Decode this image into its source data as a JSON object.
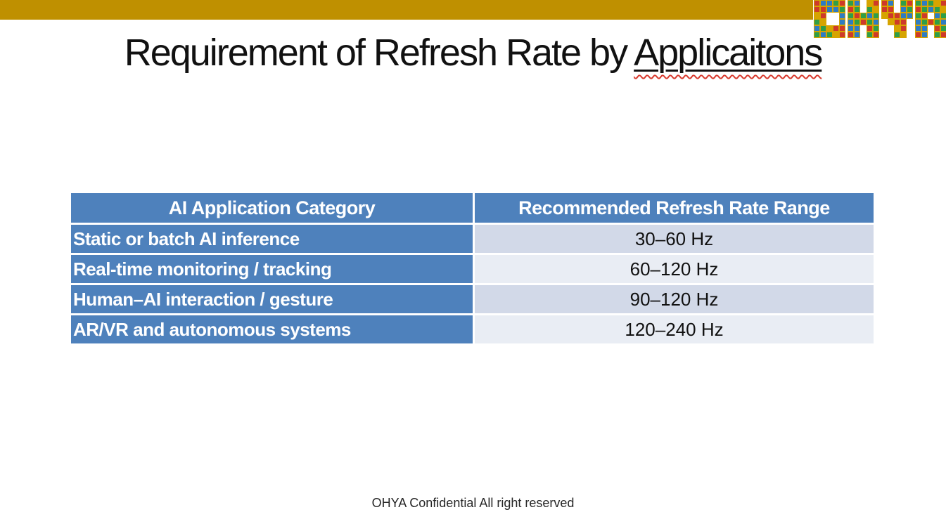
{
  "slide": {
    "title": {
      "prefix": "Requirement of Refresh Rate by ",
      "underlined": "Applicaitons"
    },
    "footer": "OHYA Confidential All right reserved"
  },
  "logo": {
    "text": "OHYA",
    "letters": [
      "O",
      "H",
      "Y",
      "A"
    ],
    "bitmaps": {
      "O": [
        [
          1,
          1,
          1,
          1,
          1
        ],
        [
          1,
          1,
          1,
          1,
          1
        ],
        [
          1,
          1,
          0,
          0,
          1
        ],
        [
          1,
          1,
          0,
          0,
          1
        ],
        [
          1,
          1,
          1,
          1,
          1
        ],
        [
          1,
          1,
          1,
          1,
          1
        ]
      ],
      "H": [
        [
          1,
          1,
          0,
          1,
          1
        ],
        [
          1,
          1,
          0,
          1,
          1
        ],
        [
          1,
          1,
          1,
          1,
          1
        ],
        [
          1,
          1,
          1,
          1,
          1
        ],
        [
          1,
          1,
          0,
          1,
          1
        ],
        [
          1,
          1,
          0,
          1,
          1
        ]
      ],
      "Y": [
        [
          1,
          1,
          0,
          1,
          1
        ],
        [
          1,
          1,
          0,
          1,
          1
        ],
        [
          1,
          1,
          1,
          1,
          1
        ],
        [
          0,
          1,
          1,
          1,
          0
        ],
        [
          0,
          0,
          1,
          1,
          0
        ],
        [
          0,
          0,
          1,
          1,
          0
        ]
      ],
      "A": [
        [
          1,
          1,
          1,
          1,
          1
        ],
        [
          1,
          1,
          1,
          1,
          1
        ],
        [
          1,
          1,
          0,
          1,
          1
        ],
        [
          1,
          1,
          1,
          1,
          1
        ],
        [
          1,
          1,
          0,
          1,
          1
        ],
        [
          1,
          1,
          0,
          1,
          1
        ]
      ]
    },
    "tile_colors": [
      "#CE3A2A",
      "#2F9E48",
      "#2E7CC3",
      "#CE3A2A",
      "#2E7CC3",
      "#2F9E48",
      "#D6A400",
      "#2E7CC3",
      "#CE3A2A",
      "#2F9E48"
    ],
    "tile_border_color": "#D6A400"
  },
  "colors": {
    "accent_bar": "#BF9000",
    "table_blue": "#4E81BC",
    "row_band_dark": "#D2D9E8",
    "row_band_light": "#E9EDF4",
    "header_text": "#FFFFFF",
    "title_text": "#111111",
    "spellcheck_squiggle": "#D83A2E"
  },
  "table": {
    "columns": [
      "AI Application Category",
      "Recommended Refresh Rate Range"
    ],
    "rows": [
      {
        "category": "Static or batch AI inference",
        "range": "30–60 Hz"
      },
      {
        "category": "Real-time monitoring / tracking",
        "range": "60–120 Hz"
      },
      {
        "category": "Human–AI interaction / gesture",
        "range": "90–120 Hz"
      },
      {
        "category": "AR/VR and autonomous systems",
        "range": "120–240 Hz"
      }
    ]
  }
}
